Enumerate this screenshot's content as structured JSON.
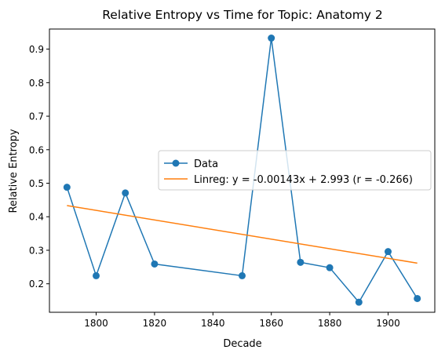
{
  "chart_data": {
    "type": "line",
    "title": "Relative Entropy vs Time for Topic: Anatomy 2",
    "xlabel": "Decade",
    "ylabel": "Relative Entropy",
    "xlim": [
      1784,
      1916
    ],
    "ylim": [
      0.115,
      0.96
    ],
    "xticks": [
      1800,
      1820,
      1840,
      1860,
      1880,
      1900
    ],
    "xtick_labels": [
      "1800",
      "1820",
      "1840",
      "1860",
      "1880",
      "1900"
    ],
    "yticks": [
      0.2,
      0.3,
      0.4,
      0.5,
      0.6,
      0.7,
      0.8,
      0.9
    ],
    "ytick_labels": [
      "0.2",
      "0.3",
      "0.4",
      "0.5",
      "0.6",
      "0.7",
      "0.8",
      "0.9"
    ],
    "grid": false,
    "legend_position": "center-right",
    "series": [
      {
        "name": "Data",
        "color": "#1f77b4",
        "marker": "circle",
        "x": [
          1790,
          1800,
          1810,
          1820,
          1850,
          1860,
          1870,
          1880,
          1890,
          1900,
          1910
        ],
        "y": [
          0.488,
          0.224,
          0.471,
          0.259,
          0.224,
          0.933,
          0.264,
          0.248,
          0.145,
          0.296,
          0.156
        ]
      },
      {
        "name": "Linreg: y = -0.00143x + 2.993 (r = -0.266)",
        "color": "#ff7f0e",
        "marker": "none",
        "x": [
          1790,
          1910
        ],
        "y": [
          0.4333,
          0.2617
        ]
      }
    ]
  }
}
